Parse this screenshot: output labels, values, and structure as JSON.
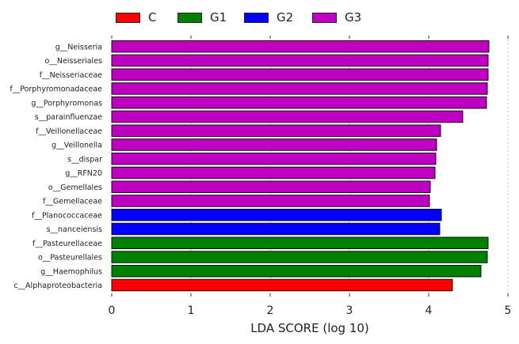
{
  "chart_data": {
    "type": "bar",
    "orientation": "horizontal",
    "xlabel": "LDA SCORE (log 10)",
    "xlim": [
      0,
      5
    ],
    "xticks": [
      0,
      1,
      2,
      3,
      4,
      5
    ],
    "grid": true,
    "legend_position": "top",
    "groups": [
      {
        "name": "C",
        "color": "#ff0000"
      },
      {
        "name": "G1",
        "color": "#008000"
      },
      {
        "name": "G2",
        "color": "#0000ff"
      },
      {
        "name": "G3",
        "color": "#c000c0"
      }
    ],
    "categories": [
      "g__Neisseria",
      "o__Neisseriales",
      "f__Neisseriaceae",
      "f__Porphyromonadaceae",
      "g__Porphyromonas",
      "s__parainfluenzae",
      "f__Veillonellaceae",
      "g__Veillonella",
      "s__dispar",
      "g__RFN20",
      "o__Gemellales",
      "f__Gemellaceae",
      "f__Planococcaceae",
      "s__nanceiensis",
      "f__Pasteurellaceae",
      "o__Pasteurellales",
      "g__Haemophilus",
      "c__Alphaproteobacteria"
    ],
    "values": [
      4.76,
      4.75,
      4.75,
      4.74,
      4.73,
      4.43,
      4.15,
      4.1,
      4.09,
      4.08,
      4.02,
      4.01,
      4.16,
      4.14,
      4.75,
      4.74,
      4.66,
      4.3
    ],
    "group_of_bar": [
      "G3",
      "G3",
      "G3",
      "G3",
      "G3",
      "G3",
      "G3",
      "G3",
      "G3",
      "G3",
      "G3",
      "G3",
      "G2",
      "G2",
      "G1",
      "G1",
      "G1",
      "C"
    ]
  }
}
